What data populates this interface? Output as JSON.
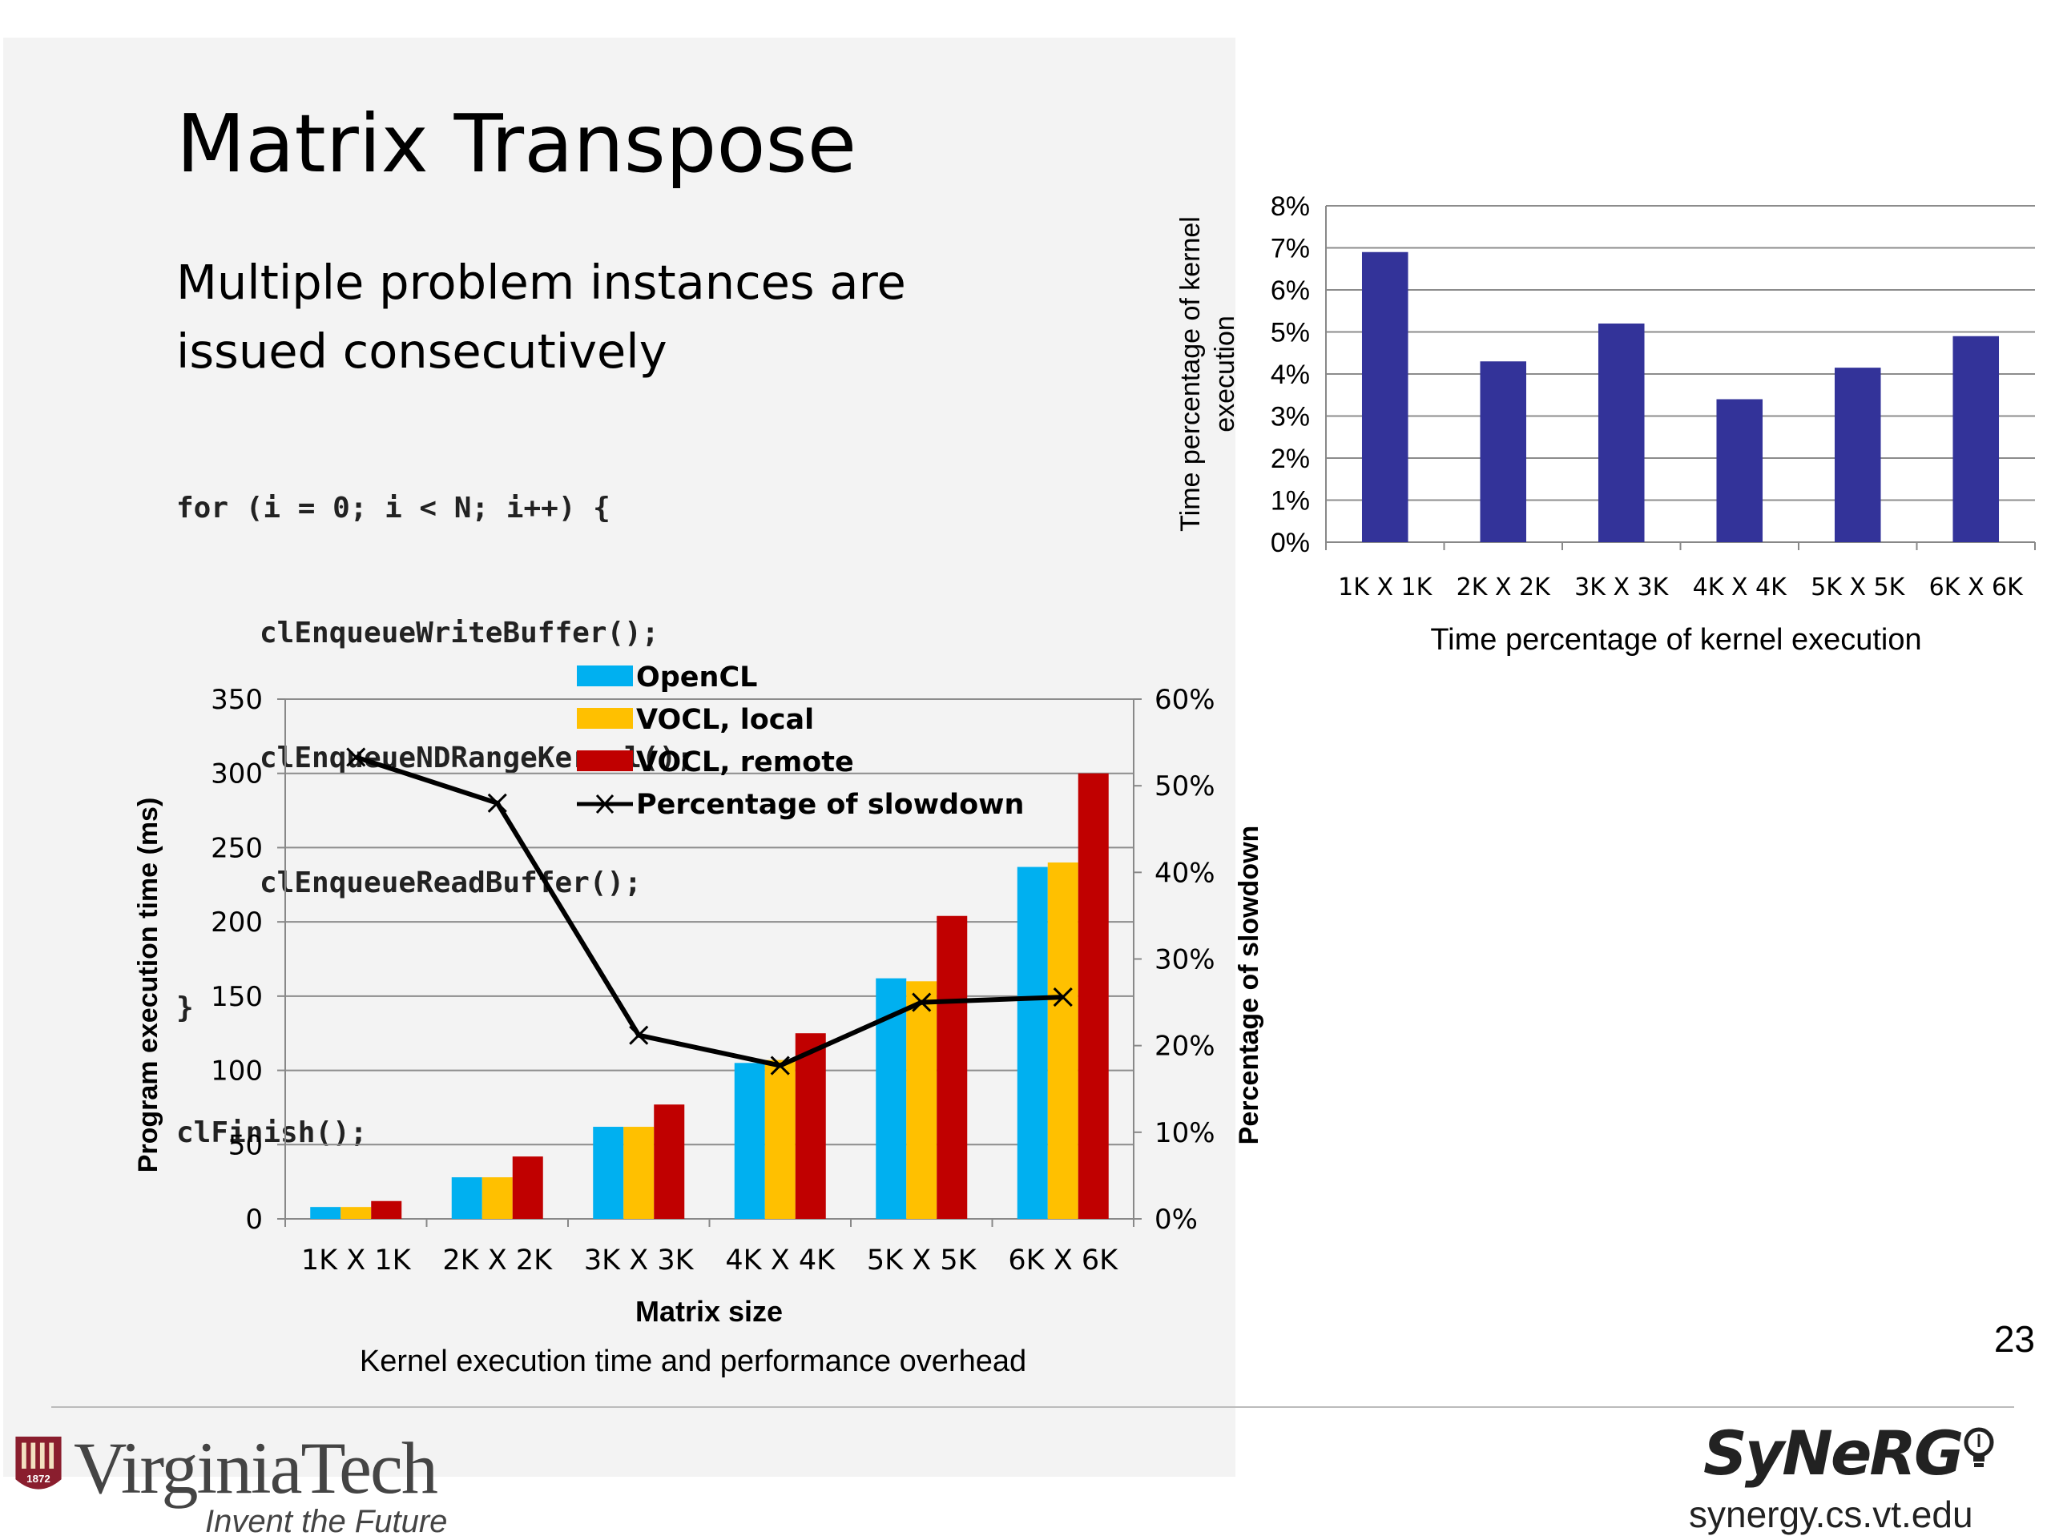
{
  "slide": {
    "title": "Matrix Transpose",
    "subtitle": "Multiple problem instances are issued consecutively",
    "code_lines": [
      "for (i = 0; i < N; i++) {",
      "clEnqueueWriteBuffer();",
      "clEnqueueNDRangeKernel();",
      "clEnqueueReadBuffer();",
      "}",
      "clFinish();"
    ],
    "page_number": "23",
    "footer": {
      "left_logo_name": "VirginiaTech",
      "left_logo_tagline": "Invent the Future",
      "left_logo_year": "1872",
      "right_logo_name": "SyNeRG",
      "right_url": "synergy.cs.vt.edu"
    }
  },
  "colors": {
    "opencl": "#00b0f0",
    "vocl_local": "#ffc000",
    "vocl_remote": "#c00000",
    "slowdown_line": "#000000",
    "kernel_bar": "#333399"
  },
  "chart_data": [
    {
      "type": "bar",
      "title": "Time percentage of kernel execution",
      "categories": [
        "1K X 1K",
        "2K X 2K",
        "3K X 3K",
        "4K X 4K",
        "5K X 5K",
        "6K X 6K"
      ],
      "values": [
        6.9,
        4.3,
        5.2,
        3.4,
        4.15,
        4.9
      ],
      "ylabel": "Time percentage of kernel execution",
      "xlabel": "",
      "ylim": [
        0,
        8
      ],
      "yticks": [
        "0%",
        "1%",
        "2%",
        "3%",
        "4%",
        "5%",
        "6%",
        "7%",
        "8%"
      ],
      "grid": true
    },
    {
      "type": "bar",
      "title": "Kernel execution time and performance overhead",
      "xlabel": "Matrix size",
      "ylabel": "Program execution time (ms)",
      "y2label": "Percentage of slowdown",
      "categories": [
        "1K X 1K",
        "2K X 2K",
        "3K X 3K",
        "4K X 4K",
        "5K X 5K",
        "6K X 6K"
      ],
      "ylim": [
        0,
        350
      ],
      "yticks": [
        "0",
        "50",
        "100",
        "150",
        "200",
        "250",
        "300",
        "350"
      ],
      "y2lim": [
        0,
        60
      ],
      "y2ticks": [
        "0%",
        "10%",
        "20%",
        "30%",
        "40%",
        "50%",
        "60%"
      ],
      "series": [
        {
          "name": "OpenCL",
          "type": "bar",
          "values": [
            8,
            28,
            62,
            105,
            162,
            237
          ]
        },
        {
          "name": "VOCL, local",
          "type": "bar",
          "values": [
            8,
            28,
            62,
            107,
            160,
            240
          ]
        },
        {
          "name": "VOCL, remote",
          "type": "bar",
          "values": [
            12,
            42,
            77,
            125,
            204,
            300
          ]
        },
        {
          "name": "Percentage of slowdown",
          "type": "line",
          "axis": "y2",
          "values": [
            53.3,
            48,
            21.2,
            17.7,
            25,
            25.6
          ]
        }
      ],
      "legend": "top-center",
      "grid": true
    }
  ]
}
